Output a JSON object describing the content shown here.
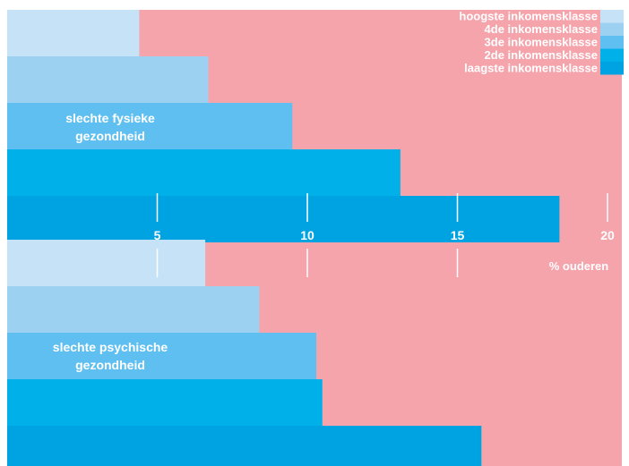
{
  "chart_data": {
    "type": "bar",
    "orientation": "horizontal",
    "xlabel": "% ouderen",
    "xlim": [
      0,
      20
    ],
    "x_ticks": [
      5,
      10,
      15,
      20
    ],
    "legend": {
      "placement": "top-right",
      "entries": [
        "hoogste inkomensklasse",
        "4de inkomensklasse",
        "3de inkomensklasse",
        "2de inkomensklasse",
        "laagste inkomensklasse"
      ]
    },
    "groups": [
      {
        "label_lines": [
          "slechte fysieke",
          "gezondheid"
        ],
        "values": [
          4.4,
          6.7,
          9.5,
          13.1,
          18.4
        ]
      },
      {
        "label_lines": [
          "slechte psychische",
          "gezondheid"
        ],
        "values": [
          6.6,
          8.4,
          10.3,
          10.5,
          15.8
        ]
      }
    ],
    "series_colors": [
      "#c6e2f6",
      "#9dd1f1",
      "#5fbff0",
      "#00b0e9",
      "#00a3e2"
    ],
    "background_color": "#f6a4ac"
  }
}
